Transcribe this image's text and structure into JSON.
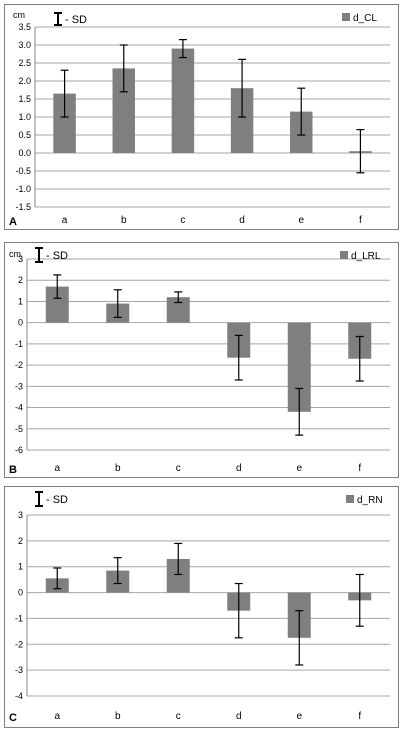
{
  "chart_data": [
    {
      "type": "bar",
      "panel_label": "A",
      "unit_label": "cm",
      "sd_legend": "- SD",
      "series": [
        {
          "name": "d_CL",
          "values": [
            1.65,
            2.35,
            2.9,
            1.8,
            1.15,
            0.05
          ],
          "error": [
            0.65,
            0.65,
            0.25,
            0.8,
            0.65,
            0.6
          ]
        }
      ],
      "categories": [
        "a",
        "b",
        "c",
        "d",
        "e",
        "f"
      ],
      "ylim": [
        -1.5,
        3.5
      ],
      "yticks": [
        3.5,
        3.0,
        2.5,
        2.0,
        1.5,
        1.0,
        0.5,
        0.0,
        -0.5,
        -1.0,
        -1.5
      ],
      "ytick_labels": [
        "3.5",
        "3.0",
        "2.5",
        "2.0",
        "1.5",
        "1.0",
        "0.5",
        "0.0",
        "-0.5",
        "-1.0",
        "-1.5"
      ],
      "grid": true,
      "legend_position": "top-right",
      "bar_color": "#7f7f7f"
    },
    {
      "type": "bar",
      "panel_label": "B",
      "unit_label": "cm",
      "sd_legend": "- SD",
      "series": [
        {
          "name": "d_LRL",
          "values": [
            1.7,
            0.9,
            1.2,
            -1.65,
            -4.2,
            -1.7
          ],
          "error": [
            0.55,
            0.65,
            0.25,
            1.05,
            1.1,
            1.05
          ]
        }
      ],
      "categories": [
        "a",
        "b",
        "c",
        "d",
        "e",
        "f"
      ],
      "ylim": [
        -6,
        3
      ],
      "yticks": [
        3,
        2,
        1,
        0,
        -1,
        -2,
        -3,
        -4,
        -5,
        -6
      ],
      "ytick_labels": [
        "3",
        "2",
        "1",
        "0",
        "-1",
        "-2",
        "-3",
        "-4",
        "-5",
        "-6"
      ],
      "grid": true,
      "legend_position": "top-right",
      "bar_color": "#7f7f7f"
    },
    {
      "type": "bar",
      "panel_label": "C",
      "unit_label": "",
      "sd_legend": "- SD",
      "series": [
        {
          "name": "d_RN",
          "values": [
            0.55,
            0.85,
            1.3,
            -0.7,
            -1.75,
            -0.3
          ],
          "error": [
            0.4,
            0.5,
            0.6,
            1.05,
            1.05,
            1.0
          ]
        }
      ],
      "categories": [
        "a",
        "b",
        "c",
        "d",
        "e",
        "f"
      ],
      "ylim": [
        -4,
        3
      ],
      "yticks": [
        3,
        2,
        1,
        0,
        -1,
        -2,
        -3,
        -4
      ],
      "ytick_labels": [
        "3",
        "2",
        "1",
        "0",
        "-1",
        "-2",
        "-3",
        "-4"
      ],
      "grid": true,
      "legend_position": "top-right",
      "bar_color": "#7f7f7f"
    }
  ]
}
